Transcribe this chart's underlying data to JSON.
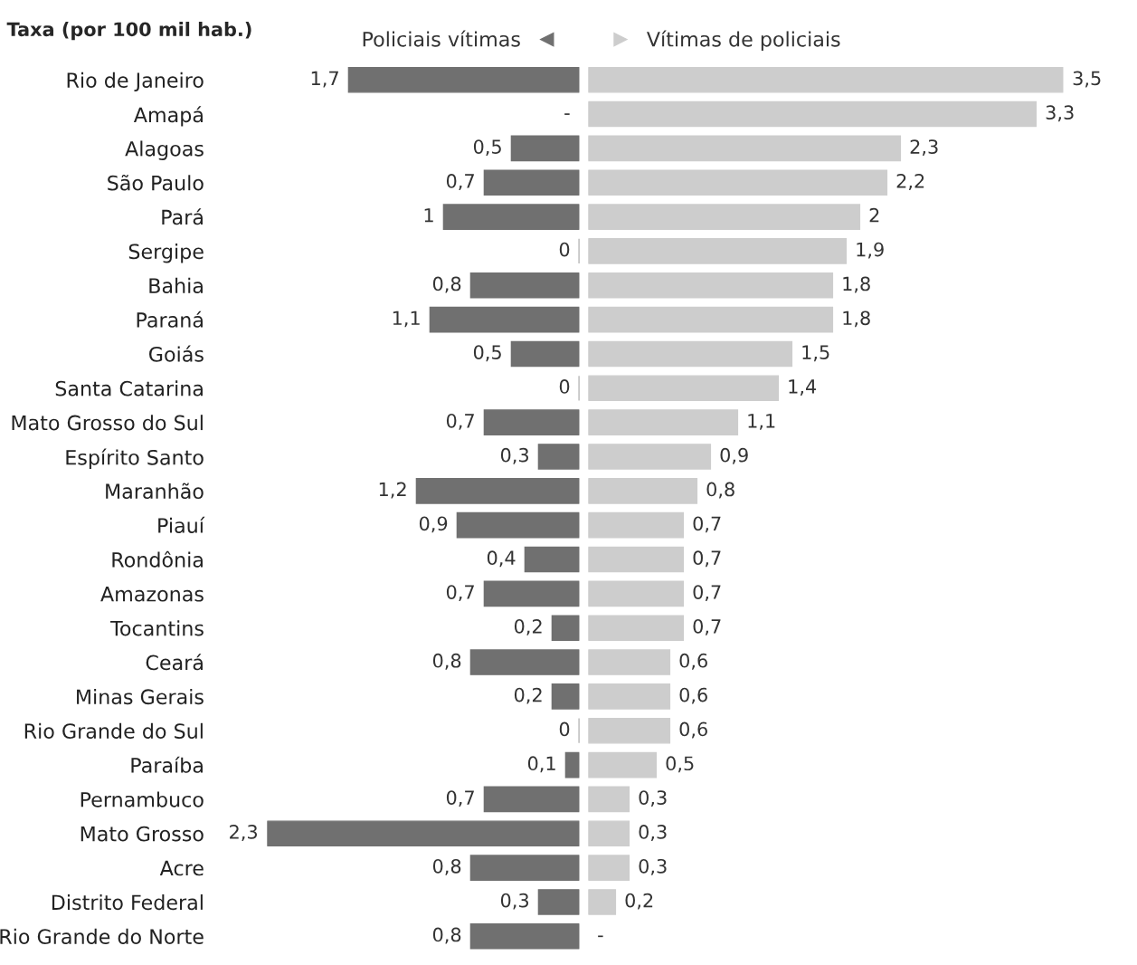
{
  "chart_data": [
    {
      "type": "bar",
      "orientation": "horizontal",
      "title": "Taxa (por 100 mil hab.)",
      "categories": [
        "Rio de Janeiro",
        "Amapá",
        "Alagoas",
        "São Paulo",
        "Pará",
        "Sergipe",
        "Bahia",
        "Paraná",
        "Goiás",
        "Santa Catarina",
        "Mato Grosso do Sul",
        "Espírito Santo",
        "Maranhão",
        "Piauí",
        "Rondônia",
        "Amazonas",
        "Tocantins",
        "Ceará",
        "Minas Gerais",
        "Rio Grande do Sul",
        "Paraíba",
        "Pernambuco",
        "Mato Grosso",
        "Acre",
        "Distrito Federal",
        "Rio Grande do Norte"
      ],
      "series": [
        {
          "name": "Policiais vítimas",
          "color": "#707070",
          "values": [
            1.7,
            null,
            0.5,
            0.7,
            1,
            0,
            0.8,
            1.1,
            0.5,
            0,
            0.7,
            0.3,
            1.2,
            0.9,
            0.4,
            0.7,
            0.2,
            0.8,
            0.2,
            0,
            0.1,
            0.7,
            2.3,
            0.8,
            0.3,
            0.8
          ],
          "value_labels": [
            "1,7",
            "-",
            "0,5",
            "0,7",
            "1",
            "0",
            "0,8",
            "1,1",
            "0,5",
            "0",
            "0,7",
            "0,3",
            "1,2",
            "0,9",
            "0,4",
            "0,7",
            "0,2",
            "0,8",
            "0,2",
            "0",
            "0,1",
            "0,7",
            "2,3",
            "0,8",
            "0,3",
            "0,8"
          ]
        }
      ],
      "tick_labels": "y",
      "legend": "top right",
      "grid": false
    },
    {
      "type": "bar",
      "orientation": "horizontal",
      "series": [
        {
          "name": "Vítimas de policiais",
          "color": "#cdcdcd",
          "values": [
            3.5,
            3.3,
            2.3,
            2.2,
            2,
            1.9,
            1.8,
            1.8,
            1.5,
            1.4,
            1.1,
            0.9,
            0.8,
            0.7,
            0.7,
            0.7,
            0.7,
            0.6,
            0.6,
            0.6,
            0.5,
            0.3,
            0.3,
            0.3,
            0.2,
            null
          ],
          "value_labels": [
            "3,5",
            "3,3",
            "2,3",
            "2,2",
            "2",
            "1,9",
            "1,8",
            "1,8",
            "1,5",
            "1,4",
            "1,1",
            "0,9",
            "0,8",
            "0,7",
            "0,7",
            "0,7",
            "0,7",
            "0,6",
            "0,6",
            "0,6",
            "0,5",
            "0,3",
            "0,3",
            "0,3",
            "0,2",
            "-"
          ]
        }
      ],
      "tick_labels": false,
      "legend": "top left",
      "grid": false
    }
  ]
}
